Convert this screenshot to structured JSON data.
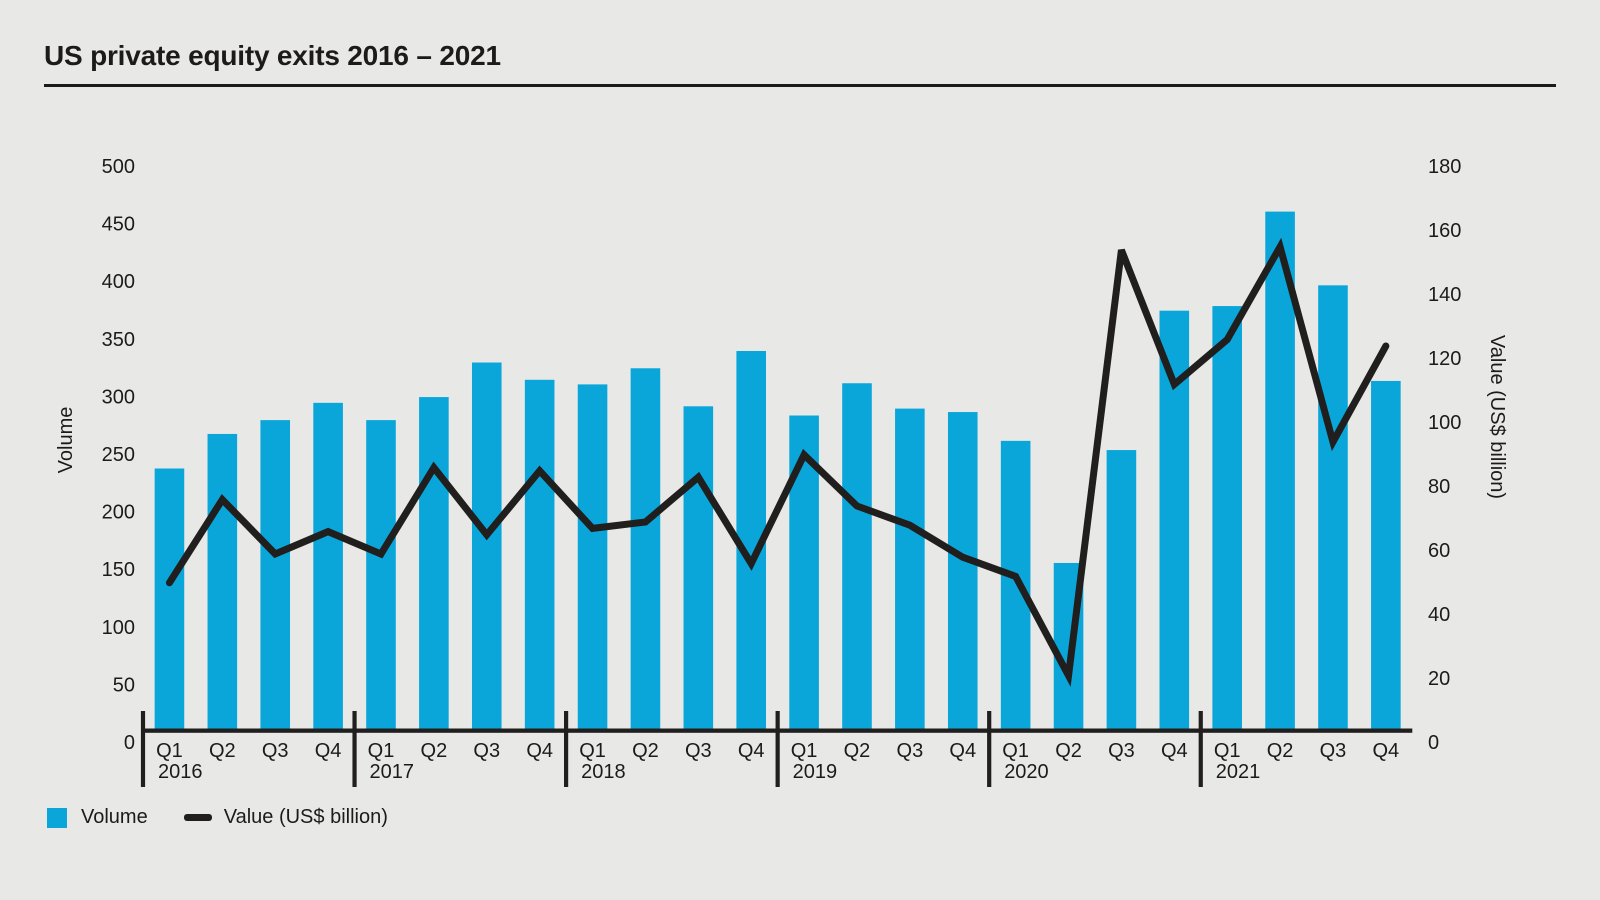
{
  "title": "US private equity exits 2016 – 2021",
  "colors": {
    "background": "#e8e9e7",
    "bar": "#0aa6da",
    "line": "#211e1e",
    "text": "#1d1b1a"
  },
  "legend": {
    "volume_label": "Volume",
    "value_label": "Value (US$ billion)"
  },
  "chart_data": {
    "type": "bar",
    "subtype": "combo-bar-line",
    "title": "US private equity exits 2016 – 2021",
    "grid": false,
    "legend_position": "bottom-left",
    "quarter_labels": [
      "Q1",
      "Q2",
      "Q3",
      "Q4"
    ],
    "years": [
      "2016",
      "2017",
      "2018",
      "2019",
      "2020",
      "2021"
    ],
    "categories": [
      "Q1 2016",
      "Q2 2016",
      "Q3 2016",
      "Q4 2016",
      "Q1 2017",
      "Q2 2017",
      "Q3 2017",
      "Q4 2017",
      "Q1 2018",
      "Q2 2018",
      "Q3 2018",
      "Q4 2018",
      "Q1 2019",
      "Q2 2019",
      "Q3 2019",
      "Q4 2019",
      "Q1 2020",
      "Q2 2020",
      "Q3 2020",
      "Q4 2020",
      "Q1 2021",
      "Q2 2021",
      "Q3 2021",
      "Q4 2021"
    ],
    "left_axis": {
      "label": "Volume",
      "min": 0,
      "max": 500,
      "tick_step": 50
    },
    "right_axis": {
      "label": "Value (US$ billion)",
      "min": 0,
      "max": 180,
      "tick_step": 20
    },
    "series": [
      {
        "name": "Volume",
        "type": "bar",
        "axis": "left",
        "color": "#0aa6da",
        "values": [
          227,
          257,
          269,
          284,
          269,
          289,
          319,
          304,
          300,
          314,
          281,
          329,
          273,
          301,
          279,
          276,
          251,
          145,
          243,
          364,
          368,
          450,
          386,
          303
        ]
      },
      {
        "name": "Value (US$ billion)",
        "type": "line",
        "axis": "right",
        "color": "#211e1e",
        "values": [
          46,
          72,
          55,
          62,
          55,
          82,
          61,
          81,
          63,
          65,
          79,
          52,
          86,
          70,
          64,
          54,
          48,
          17,
          150,
          108,
          122,
          151,
          90,
          120
        ]
      }
    ]
  }
}
